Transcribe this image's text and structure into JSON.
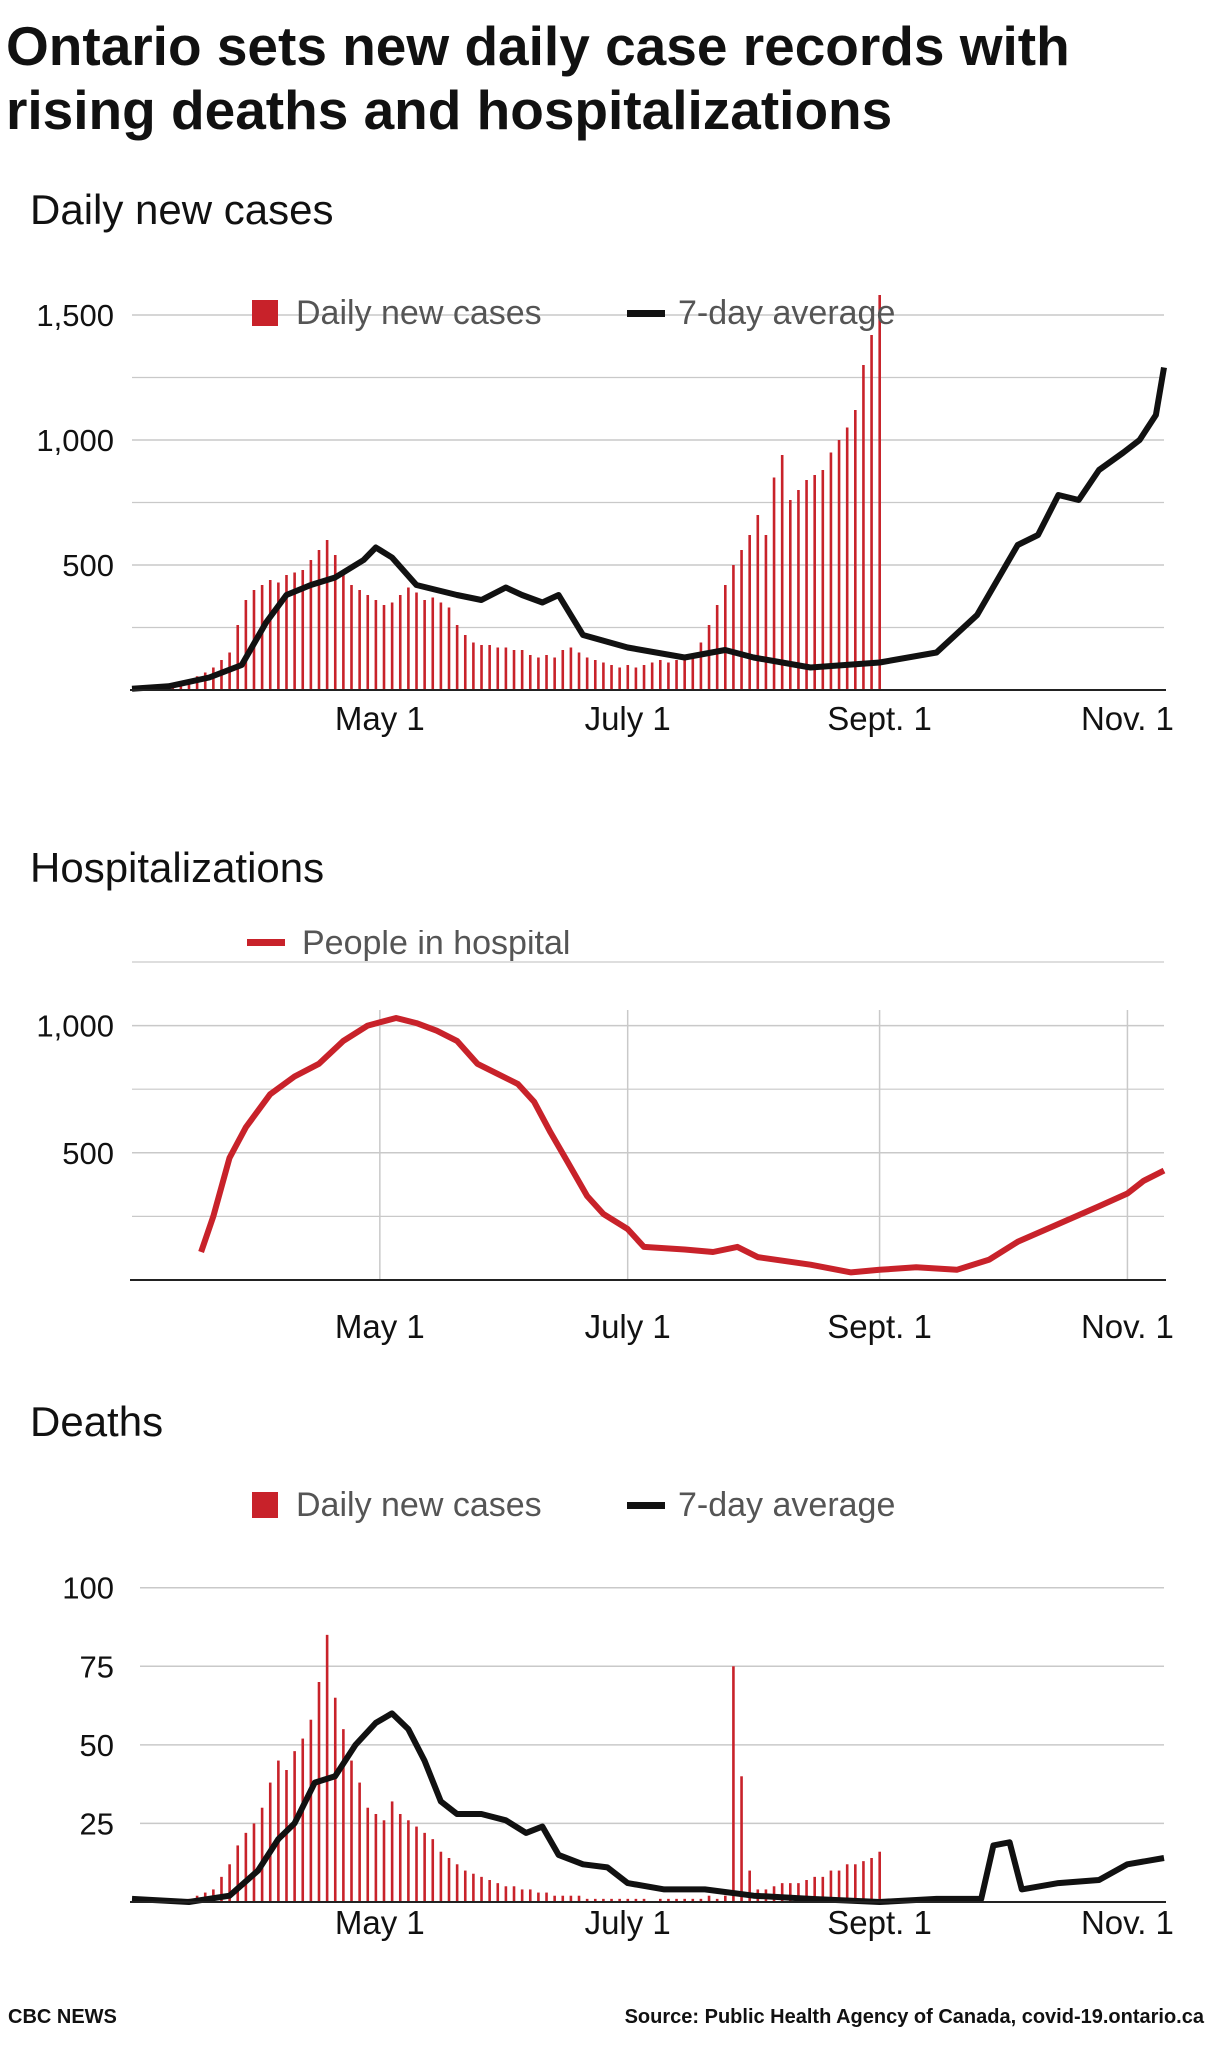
{
  "title": "Ontario sets new daily case records with rising deaths and hospitalizations",
  "footer": {
    "brand": "CBC NEWS",
    "source": "Source: Public Health Agency of Canada, covid-19.ontario.ca"
  },
  "colors": {
    "bar": "#c8222a",
    "avg": "#111111",
    "hospital": "#c8222a",
    "grid": "#c9c9c9"
  },
  "chart_data": [
    {
      "type": "bar",
      "title": "Daily new cases",
      "legend": [
        "Daily new cases",
        "7-day average"
      ],
      "legend_placement": "top",
      "x_range": [
        "2020-03-01",
        "2020-11-10"
      ],
      "x_ticks": [
        {
          "date": "2020-05-01",
          "label": "May 1"
        },
        {
          "date": "2020-07-01",
          "label": "July 1"
        },
        {
          "date": "2020-09-01",
          "label": "Sept. 1"
        },
        {
          "date": "2020-11-01",
          "label": "Nov. 1"
        }
      ],
      "y_ticks": [
        500,
        1000,
        1500
      ],
      "y_tick_labels": [
        "500",
        "1,000",
        "1,500"
      ],
      "ylim": [
        0,
        1600
      ],
      "grid": true,
      "series": [
        {
          "name": "7-day average",
          "type": "line",
          "points": [
            [
              "2020-03-01",
              5
            ],
            [
              "2020-03-10",
              15
            ],
            [
              "2020-03-20",
              50
            ],
            [
              "2020-03-28",
              100
            ],
            [
              "2020-04-03",
              270
            ],
            [
              "2020-04-08",
              380
            ],
            [
              "2020-04-14",
              420
            ],
            [
              "2020-04-20",
              450
            ],
            [
              "2020-04-27",
              520
            ],
            [
              "2020-04-30",
              570
            ],
            [
              "2020-05-04",
              530
            ],
            [
              "2020-05-10",
              420
            ],
            [
              "2020-05-20",
              380
            ],
            [
              "2020-05-26",
              360
            ],
            [
              "2020-06-01",
              410
            ],
            [
              "2020-06-05",
              380
            ],
            [
              "2020-06-10",
              350
            ],
            [
              "2020-06-14",
              380
            ],
            [
              "2020-06-20",
              220
            ],
            [
              "2020-07-01",
              170
            ],
            [
              "2020-07-15",
              130
            ],
            [
              "2020-07-25",
              160
            ],
            [
              "2020-08-01",
              130
            ],
            [
              "2020-08-15",
              90
            ],
            [
              "2020-09-01",
              110
            ],
            [
              "2020-09-15",
              150
            ],
            [
              "2020-09-25",
              300
            ],
            [
              "2020-10-05",
              580
            ],
            [
              "2020-10-10",
              620
            ],
            [
              "2020-10-15",
              780
            ],
            [
              "2020-10-20",
              760
            ],
            [
              "2020-10-25",
              880
            ],
            [
              "2020-10-31",
              950
            ],
            [
              "2020-11-04",
              1000
            ],
            [
              "2020-11-08",
              1100
            ],
            [
              "2020-11-10",
              1290
            ]
          ]
        },
        {
          "name": "Daily new cases",
          "type": "bar",
          "start": "2020-03-01",
          "values_every_2_days": [
            3,
            6,
            9,
            12,
            16,
            24,
            30,
            40,
            55,
            70,
            90,
            120,
            150,
            260,
            360,
            400,
            420,
            440,
            430,
            460,
            470,
            480,
            520,
            560,
            600,
            540,
            480,
            420,
            400,
            380,
            360,
            340,
            350,
            380,
            410,
            390,
            360,
            370,
            350,
            330,
            260,
            220,
            190,
            180,
            180,
            170,
            170,
            160,
            160,
            140,
            130,
            140,
            130,
            160,
            170,
            150,
            130,
            120,
            110,
            100,
            90,
            100,
            90,
            100,
            110,
            120,
            110,
            120,
            130,
            140,
            190,
            260,
            340,
            420,
            500,
            560,
            620,
            700,
            620,
            850,
            940,
            760,
            800,
            840,
            860,
            880,
            950,
            1000,
            1050,
            1120,
            1300,
            1420,
            1580
          ]
        }
      ]
    },
    {
      "type": "line",
      "title": "Hospitalizations",
      "legend": [
        "People in hospital"
      ],
      "legend_placement": "top",
      "x_range": [
        "2020-03-01",
        "2020-11-10"
      ],
      "x_ticks": [
        {
          "date": "2020-05-01",
          "label": "May 1"
        },
        {
          "date": "2020-07-01",
          "label": "July 1"
        },
        {
          "date": "2020-09-01",
          "label": "Sept. 1"
        },
        {
          "date": "2020-11-01",
          "label": "Nov. 1"
        }
      ],
      "y_ticks": [
        500,
        1000
      ],
      "y_tick_labels": [
        "500",
        "1,000"
      ],
      "ylim": [
        0,
        1250
      ],
      "grid": true,
      "series": [
        {
          "name": "People in hospital",
          "points": [
            [
              "2020-03-18",
              110
            ],
            [
              "2020-03-21",
              250
            ],
            [
              "2020-03-25",
              480
            ],
            [
              "2020-03-29",
              600
            ],
            [
              "2020-04-04",
              730
            ],
            [
              "2020-04-10",
              800
            ],
            [
              "2020-04-16",
              850
            ],
            [
              "2020-04-22",
              940
            ],
            [
              "2020-04-28",
              1000
            ],
            [
              "2020-05-05",
              1030
            ],
            [
              "2020-05-10",
              1010
            ],
            [
              "2020-05-15",
              980
            ],
            [
              "2020-05-20",
              940
            ],
            [
              "2020-05-25",
              850
            ],
            [
              "2020-05-30",
              810
            ],
            [
              "2020-06-04",
              770
            ],
            [
              "2020-06-08",
              700
            ],
            [
              "2020-06-12",
              580
            ],
            [
              "2020-06-16",
              470
            ],
            [
              "2020-06-21",
              330
            ],
            [
              "2020-06-25",
              260
            ],
            [
              "2020-07-01",
              200
            ],
            [
              "2020-07-05",
              130
            ],
            [
              "2020-07-15",
              120
            ],
            [
              "2020-07-22",
              110
            ],
            [
              "2020-07-28",
              130
            ],
            [
              "2020-08-02",
              90
            ],
            [
              "2020-08-15",
              60
            ],
            [
              "2020-08-25",
              30
            ],
            [
              "2020-09-01",
              40
            ],
            [
              "2020-09-10",
              50
            ],
            [
              "2020-09-20",
              40
            ],
            [
              "2020-09-28",
              80
            ],
            [
              "2020-10-05",
              150
            ],
            [
              "2020-10-15",
              220
            ],
            [
              "2020-10-25",
              290
            ],
            [
              "2020-11-01",
              340
            ],
            [
              "2020-11-05",
              390
            ],
            [
              "2020-11-10",
              430
            ]
          ]
        }
      ]
    },
    {
      "type": "bar",
      "title": "Deaths",
      "legend": [
        "Daily new cases",
        "7-day average"
      ],
      "legend_placement": "top",
      "x_range": [
        "2020-03-01",
        "2020-11-10"
      ],
      "x_ticks": [
        {
          "date": "2020-05-01",
          "label": "May 1"
        },
        {
          "date": "2020-07-01",
          "label": "July 1"
        },
        {
          "date": "2020-09-01",
          "label": "Sept. 1"
        },
        {
          "date": "2020-11-01",
          "label": "Nov. 1"
        }
      ],
      "y_ticks": [
        25,
        50,
        75,
        100
      ],
      "y_tick_labels": [
        "25",
        "50",
        "75",
        "100"
      ],
      "ylim": [
        0,
        105
      ],
      "grid": true,
      "series": [
        {
          "name": "7-day average",
          "type": "line",
          "points": [
            [
              "2020-03-01",
              1
            ],
            [
              "2020-03-15",
              0
            ],
            [
              "2020-03-25",
              2
            ],
            [
              "2020-04-01",
              10
            ],
            [
              "2020-04-06",
              20
            ],
            [
              "2020-04-10",
              25
            ],
            [
              "2020-04-15",
              38
            ],
            [
              "2020-04-20",
              40
            ],
            [
              "2020-04-25",
              50
            ],
            [
              "2020-04-30",
              57
            ],
            [
              "2020-05-04",
              60
            ],
            [
              "2020-05-08",
              55
            ],
            [
              "2020-05-12",
              45
            ],
            [
              "2020-05-16",
              32
            ],
            [
              "2020-05-20",
              28
            ],
            [
              "2020-05-26",
              28
            ],
            [
              "2020-06-01",
              26
            ],
            [
              "2020-06-06",
              22
            ],
            [
              "2020-06-10",
              24
            ],
            [
              "2020-06-14",
              15
            ],
            [
              "2020-06-20",
              12
            ],
            [
              "2020-06-26",
              11
            ],
            [
              "2020-07-01",
              6
            ],
            [
              "2020-07-10",
              4
            ],
            [
              "2020-07-20",
              4
            ],
            [
              "2020-08-01",
              2
            ],
            [
              "2020-08-15",
              1
            ],
            [
              "2020-09-01",
              0
            ],
            [
              "2020-09-15",
              1
            ],
            [
              "2020-09-26",
              1
            ],
            [
              "2020-09-29",
              18
            ],
            [
              "2020-10-03",
              19
            ],
            [
              "2020-10-06",
              4
            ],
            [
              "2020-10-15",
              6
            ],
            [
              "2020-10-25",
              7
            ],
            [
              "2020-11-01",
              12
            ],
            [
              "2020-11-10",
              14
            ]
          ]
        },
        {
          "name": "Daily new cases",
          "type": "bar",
          "start": "2020-03-01",
          "values_every_2_days": [
            0,
            0,
            0,
            0,
            0,
            0,
            1,
            1,
            2,
            3,
            4,
            8,
            12,
            18,
            22,
            25,
            30,
            38,
            45,
            42,
            48,
            52,
            58,
            70,
            85,
            65,
            55,
            45,
            38,
            30,
            28,
            26,
            32,
            28,
            26,
            24,
            22,
            20,
            16,
            14,
            12,
            10,
            9,
            8,
            7,
            6,
            5,
            5,
            4,
            4,
            3,
            3,
            2,
            2,
            2,
            2,
            1,
            1,
            1,
            1,
            1,
            1,
            1,
            1,
            0,
            1,
            1,
            1,
            1,
            1,
            1,
            2,
            1,
            2,
            75,
            40,
            10,
            4,
            4,
            5,
            6,
            6,
            6,
            7,
            8,
            8,
            10,
            10,
            12,
            12,
            13,
            14,
            16
          ]
        }
      ]
    }
  ]
}
